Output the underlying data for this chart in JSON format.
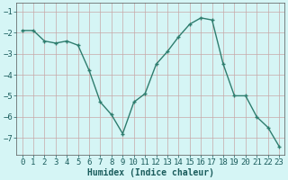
{
  "x": [
    0,
    1,
    2,
    3,
    4,
    5,
    6,
    7,
    8,
    9,
    10,
    11,
    12,
    13,
    14,
    15,
    16,
    17,
    18,
    19,
    20,
    21,
    22,
    23
  ],
  "y": [
    -1.9,
    -1.9,
    -2.4,
    -2.5,
    -2.4,
    -2.6,
    -3.8,
    -5.3,
    -5.9,
    -6.8,
    -5.3,
    -4.9,
    -3.5,
    -2.9,
    -2.2,
    -1.6,
    -1.3,
    -1.4,
    -3.5,
    -5.0,
    -5.0,
    -6.0,
    -6.5,
    -7.4
  ],
  "xlabel": "Humidex (Indice chaleur)",
  "ylabel": "",
  "ylim": [
    -7.8,
    -0.6
  ],
  "xlim": [
    -0.5,
    23.5
  ],
  "yticks": [
    -7,
    -6,
    -5,
    -4,
    -3,
    -2,
    -1
  ],
  "xticks": [
    0,
    1,
    2,
    3,
    4,
    5,
    6,
    7,
    8,
    9,
    10,
    11,
    12,
    13,
    14,
    15,
    16,
    17,
    18,
    19,
    20,
    21,
    22,
    23
  ],
  "line_color": "#2e7d6e",
  "marker": "+",
  "bg_color": "#d5f5f5",
  "grid_color": "#c8a8a8",
  "label_fontsize": 7,
  "tick_fontsize": 6.5
}
